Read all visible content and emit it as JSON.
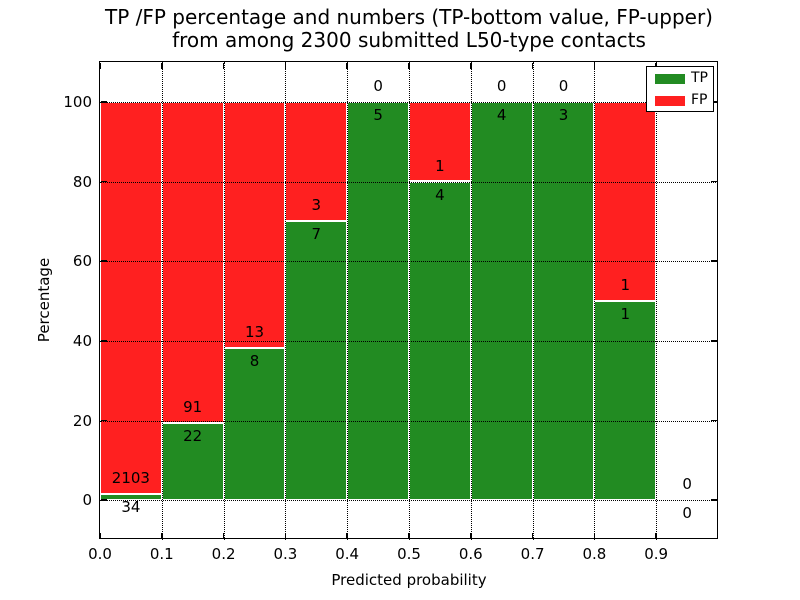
{
  "title": {
    "line1": "TP /FP percentage and numbers (TP-bottom value, FP-upper)",
    "line2": "from among 2300 submitted L50-type contacts"
  },
  "axes": {
    "xlabel": "Predicted probability",
    "ylabel": "Percentage",
    "xlim": [
      0.0,
      1.0
    ],
    "ylim": [
      -10,
      110
    ],
    "x_tick_values": [
      0.0,
      0.1,
      0.2,
      0.3,
      0.4,
      0.5,
      0.6,
      0.7,
      0.8,
      0.9
    ],
    "x_tick_labels": [
      "0.0",
      "0.1",
      "0.2",
      "0.3",
      "0.4",
      "0.5",
      "0.6",
      "0.7",
      "0.8",
      "0.9"
    ],
    "y_tick_values": [
      0,
      20,
      40,
      60,
      80,
      100
    ],
    "y_tick_labels": [
      "0",
      "20",
      "40",
      "60",
      "80",
      "100"
    ],
    "grid_style": "dotted"
  },
  "legend": {
    "position": "upper-right",
    "items": [
      {
        "label": "TP",
        "color": "#228b22"
      },
      {
        "label": "FP",
        "color": "#ff2020"
      }
    ]
  },
  "chart_data": {
    "type": "bar",
    "stacked": true,
    "title": "TP /FP percentage and numbers (TP-bottom value, FP-upper) from among 2300 submitted L50-type contacts",
    "xlabel": "Predicted probability",
    "ylabel": "Percentage",
    "total_submitted": 2300,
    "bin_starts": [
      0.0,
      0.1,
      0.2,
      0.3,
      0.4,
      0.5,
      0.6,
      0.7,
      0.8,
      0.9
    ],
    "bin_width": 0.1,
    "series": [
      {
        "name": "TP",
        "color": "#228b22",
        "counts": [
          34,
          22,
          8,
          7,
          5,
          4,
          4,
          3,
          1,
          0
        ]
      },
      {
        "name": "FP",
        "color": "#ff2020",
        "counts": [
          2103,
          91,
          13,
          3,
          0,
          1,
          0,
          0,
          1,
          0
        ]
      }
    ],
    "tp_percentages": [
      1.6,
      19.5,
      38.1,
      70.0,
      100.0,
      80.0,
      100.0,
      100.0,
      50.0,
      null
    ],
    "ylim": [
      -10,
      110
    ],
    "xlim": [
      0.0,
      1.0
    ],
    "grid": true,
    "legend_position": "upper-right"
  }
}
